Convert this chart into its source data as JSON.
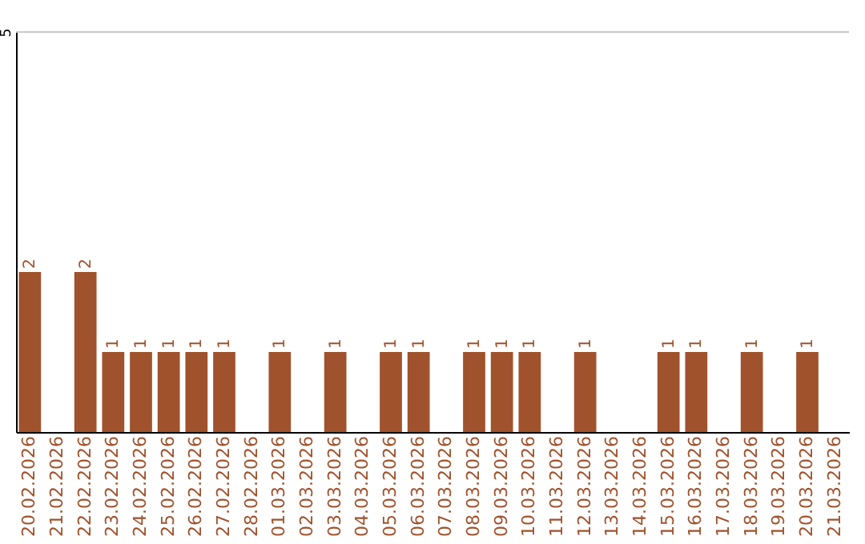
{
  "chart_data": {
    "type": "bar",
    "categories": [
      "20.02.2026",
      "21.02.2026",
      "22.02.2026",
      "23.02.2026",
      "24.02.2026",
      "25.02.2026",
      "26.02.2026",
      "27.02.2026",
      "28.02.2026",
      "01.03.2026",
      "02.03.2026",
      "03.03.2026",
      "04.03.2026",
      "05.03.2026",
      "06.03.2026",
      "07.03.2026",
      "08.03.2026",
      "09.03.2026",
      "10.03.2026",
      "11.03.2026",
      "12.03.2026",
      "13.03.2026",
      "14.03.2026",
      "15.03.2026",
      "16.03.2026",
      "17.03.2026",
      "18.03.2026",
      "19.03.2026",
      "20.03.2026",
      "21.03.2026"
    ],
    "values": [
      2,
      0,
      2,
      1,
      1,
      1,
      1,
      1,
      0,
      1,
      0,
      1,
      0,
      1,
      1,
      0,
      1,
      1,
      1,
      0,
      1,
      0,
      0,
      1,
      1,
      0,
      1,
      0,
      1,
      0
    ],
    "value_labels": [
      "2",
      null,
      "2",
      "1",
      "1",
      "1",
      "1",
      "1",
      null,
      "1",
      null,
      "1",
      null,
      "1",
      "1",
      null,
      "1",
      "1",
      "1",
      null,
      "1",
      null,
      null,
      "1",
      "1",
      null,
      "1",
      null,
      "1",
      null
    ],
    "color": "#a0522d",
    "ylim": [
      0,
      5
    ],
    "yticks": [
      5
    ],
    "ref_lines": [
      {
        "axis": "y",
        "value": 5,
        "color": "#c8c8c8"
      }
    ]
  }
}
